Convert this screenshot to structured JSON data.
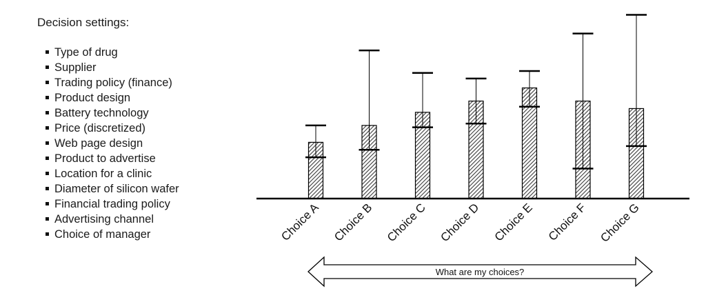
{
  "settings": {
    "title": "Decision settings:",
    "items": [
      "Type of drug",
      "Supplier",
      "Trading policy (finance)",
      "Product design",
      "Battery technology",
      "Price (discretized)",
      "Web page design",
      "Product to advertise",
      "Location for a clinic",
      "Diameter of silicon wafer",
      "Financial trading policy",
      "Advertising channel",
      "Choice of manager"
    ]
  },
  "chart_data": {
    "type": "bar",
    "categories": [
      "Choice A",
      "Choice B",
      "Choice C",
      "Choice D",
      "Choice E",
      "Choice F",
      "Choice G"
    ],
    "values": [
      0.3,
      0.39,
      0.46,
      0.52,
      0.59,
      0.52,
      0.48
    ],
    "lower": [
      0.22,
      0.26,
      0.38,
      0.4,
      0.49,
      0.16,
      0.28
    ],
    "upper": [
      0.39,
      0.79,
      0.67,
      0.64,
      0.68,
      0.88,
      0.98
    ],
    "ylim": [
      0,
      1
    ],
    "bar_fill": "hatched",
    "colors": {
      "bar_face": "#8c8c8c",
      "stroke": "#000000",
      "axis": "#000000"
    }
  },
  "arrow": {
    "label": "What are my choices?"
  }
}
